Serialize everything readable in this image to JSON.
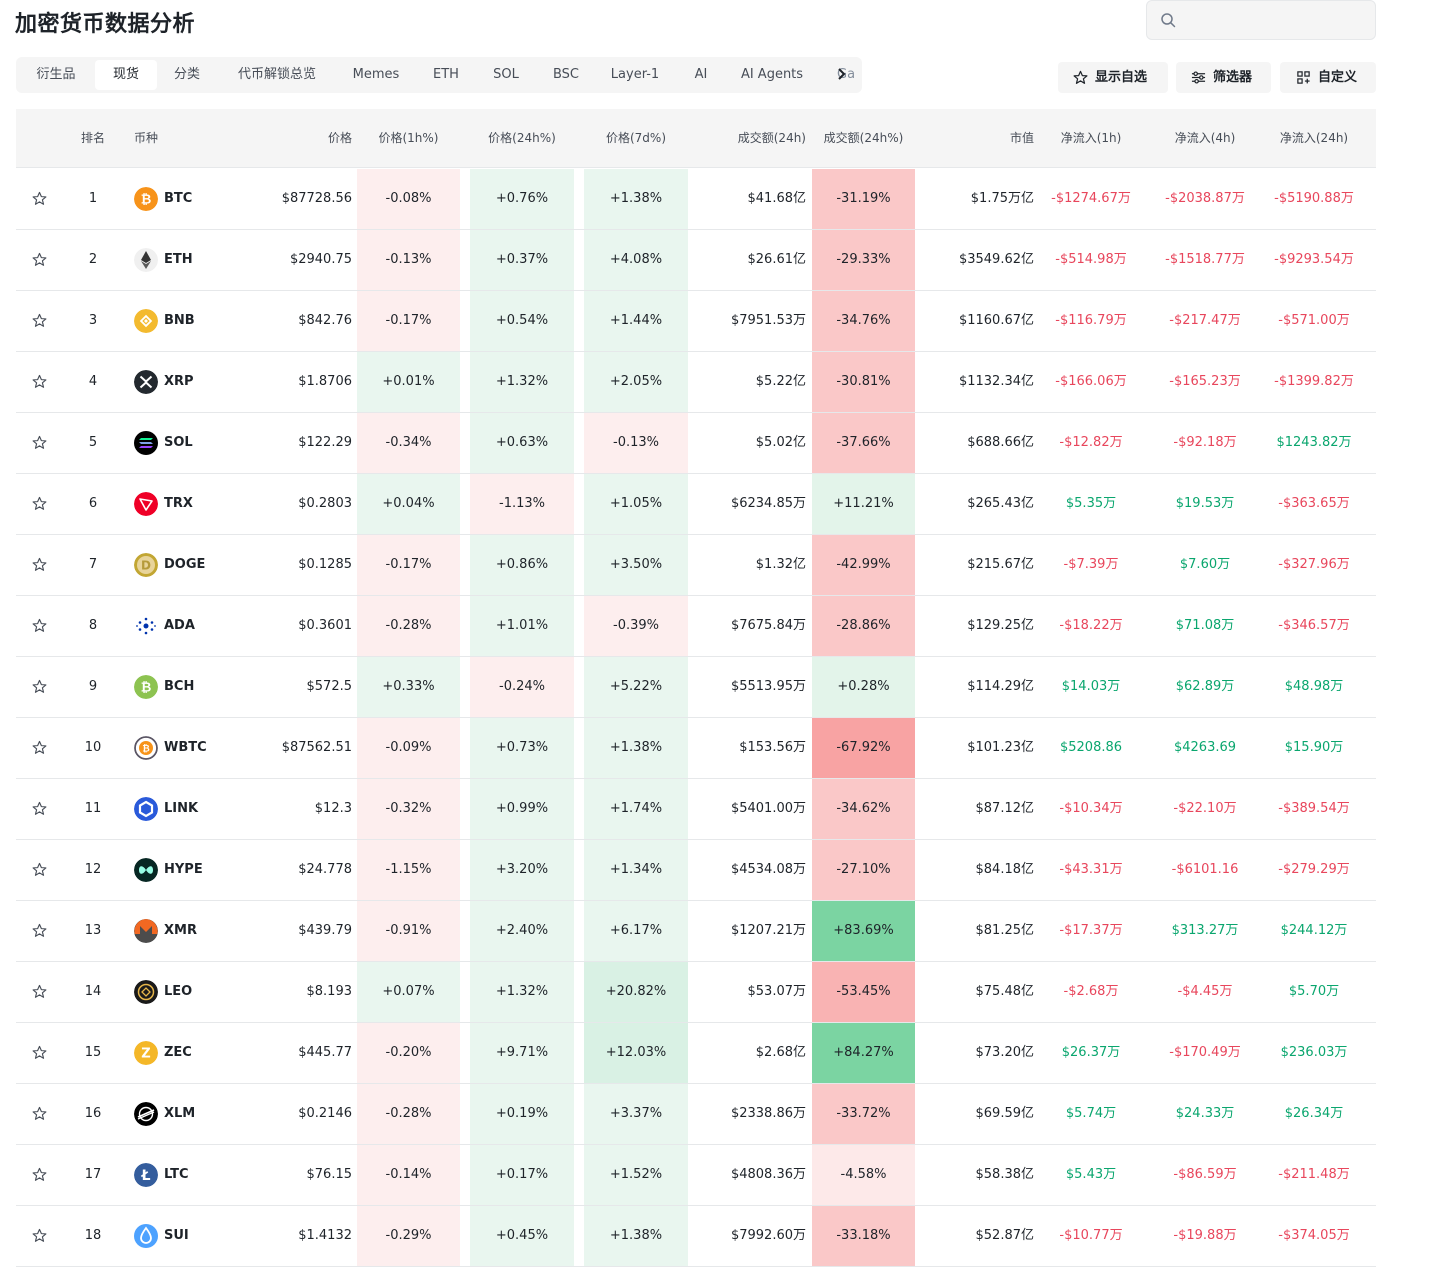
{
  "page": {
    "title": "加密货币数据分析"
  },
  "search": {
    "placeholder": ""
  },
  "tabs": [
    {
      "label": "衍生品",
      "active": false
    },
    {
      "label": "现货",
      "active": true
    },
    {
      "label": "分类",
      "active": false
    },
    {
      "label": "代币解锁总览",
      "active": false
    },
    {
      "label": "Memes",
      "active": false
    },
    {
      "label": "ETH",
      "active": false
    },
    {
      "label": "SOL",
      "active": false
    },
    {
      "label": "BSC",
      "active": false
    },
    {
      "label": "Layer-1",
      "active": false
    },
    {
      "label": "AI",
      "active": false
    },
    {
      "label": "AI Agents",
      "active": false
    },
    {
      "label": "Ga",
      "active": false
    }
  ],
  "actions": {
    "watchlist": "显示自选",
    "filter": "筛选器",
    "customize": "自定义"
  },
  "columns": {
    "rank": "排名",
    "coin": "币种",
    "price": "价格",
    "chg1h": "价格(1h%)",
    "chg24h": "价格(24h%)",
    "chg7d": "价格(7d%)",
    "vol24h": "成交额(24h)",
    "volchg": "成交额(24h%)",
    "mcap": "市值",
    "in1h": "净流入(1h)",
    "in4h": "净流入(4h)",
    "in24h": "净流入(24h)"
  },
  "colors": {
    "positive": "#0aa66e",
    "negative": "#e8465c"
  },
  "rows": [
    {
      "rank": "1",
      "symbol": "BTC",
      "icon": "btc-icon",
      "iconColor": "#f7931a",
      "price": "$87728.56",
      "c1h": "-0.08%",
      "c24h": "+0.76%",
      "c7d": "+1.38%",
      "vol": "$41.68亿",
      "volchg": "-31.19%",
      "mcap": "$1.75万亿",
      "in1h": "-$1274.67万",
      "in4h": "-$2038.87万",
      "in24h": "-$5190.88万"
    },
    {
      "rank": "2",
      "symbol": "ETH",
      "icon": "eth-icon",
      "iconColor": "#ffffff",
      "price": "$2940.75",
      "c1h": "-0.13%",
      "c24h": "+0.37%",
      "c7d": "+4.08%",
      "vol": "$26.61亿",
      "volchg": "-29.33%",
      "mcap": "$3549.62亿",
      "in1h": "-$514.98万",
      "in4h": "-$1518.77万",
      "in24h": "-$9293.54万"
    },
    {
      "rank": "3",
      "symbol": "BNB",
      "icon": "bnb-icon",
      "iconColor": "#f3ba2f",
      "price": "$842.76",
      "c1h": "-0.17%",
      "c24h": "+0.54%",
      "c7d": "+1.44%",
      "vol": "$7951.53万",
      "volchg": "-34.76%",
      "mcap": "$1160.67亿",
      "in1h": "-$116.79万",
      "in4h": "-$217.47万",
      "in24h": "-$571.00万"
    },
    {
      "rank": "4",
      "symbol": "XRP",
      "icon": "xrp-icon",
      "iconColor": "#23292f",
      "price": "$1.8706",
      "c1h": "+0.01%",
      "c24h": "+1.32%",
      "c7d": "+2.05%",
      "vol": "$5.22亿",
      "volchg": "-30.81%",
      "mcap": "$1132.34亿",
      "in1h": "-$166.06万",
      "in4h": "-$165.23万",
      "in24h": "-$1399.82万"
    },
    {
      "rank": "5",
      "symbol": "SOL",
      "icon": "sol-icon",
      "iconColor": "#000000",
      "price": "$122.29",
      "c1h": "-0.34%",
      "c24h": "+0.63%",
      "c7d": "-0.13%",
      "vol": "$5.02亿",
      "volchg": "-37.66%",
      "mcap": "$688.66亿",
      "in1h": "-$12.82万",
      "in4h": "-$92.18万",
      "in24h": "$1243.82万"
    },
    {
      "rank": "6",
      "symbol": "TRX",
      "icon": "trx-icon",
      "iconColor": "#ef0027",
      "price": "$0.2803",
      "c1h": "+0.04%",
      "c24h": "-1.13%",
      "c7d": "+1.05%",
      "vol": "$6234.85万",
      "volchg": "+11.21%",
      "mcap": "$265.43亿",
      "in1h": "$5.35万",
      "in4h": "$19.53万",
      "in24h": "-$363.65万"
    },
    {
      "rank": "7",
      "symbol": "DOGE",
      "icon": "doge-icon",
      "iconColor": "#c2a633",
      "price": "$0.1285",
      "c1h": "-0.17%",
      "c24h": "+0.86%",
      "c7d": "+3.50%",
      "vol": "$1.32亿",
      "volchg": "-42.99%",
      "mcap": "$215.67亿",
      "in1h": "-$7.39万",
      "in4h": "$7.60万",
      "in24h": "-$327.96万"
    },
    {
      "rank": "8",
      "symbol": "ADA",
      "icon": "ada-icon",
      "iconColor": "#0033ad",
      "price": "$0.3601",
      "c1h": "-0.28%",
      "c24h": "+1.01%",
      "c7d": "-0.39%",
      "vol": "$7675.84万",
      "volchg": "-28.86%",
      "mcap": "$129.25亿",
      "in1h": "-$18.22万",
      "in4h": "$71.08万",
      "in24h": "-$346.57万"
    },
    {
      "rank": "9",
      "symbol": "BCH",
      "icon": "bch-icon",
      "iconColor": "#8dc351",
      "price": "$572.5",
      "c1h": "+0.33%",
      "c24h": "-0.24%",
      "c7d": "+5.22%",
      "vol": "$5513.95万",
      "volchg": "+0.28%",
      "mcap": "$114.29亿",
      "in1h": "$14.03万",
      "in4h": "$62.89万",
      "in24h": "$48.98万"
    },
    {
      "rank": "10",
      "symbol": "WBTC",
      "icon": "wbtc-icon",
      "iconColor": "#5a5564",
      "price": "$87562.51",
      "c1h": "-0.09%",
      "c24h": "+0.73%",
      "c7d": "+1.38%",
      "vol": "$153.56万",
      "volchg": "-67.92%",
      "mcap": "$101.23亿",
      "in1h": "$5208.86",
      "in4h": "$4263.69",
      "in24h": "$15.90万"
    },
    {
      "rank": "11",
      "symbol": "LINK",
      "icon": "link-icon",
      "iconColor": "#2a5ada",
      "price": "$12.3",
      "c1h": "-0.32%",
      "c24h": "+0.99%",
      "c7d": "+1.74%",
      "vol": "$5401.00万",
      "volchg": "-34.62%",
      "mcap": "$87.12亿",
      "in1h": "-$10.34万",
      "in4h": "-$22.10万",
      "in24h": "-$389.54万"
    },
    {
      "rank": "12",
      "symbol": "HYPE",
      "icon": "hype-icon",
      "iconColor": "#072723",
      "price": "$24.778",
      "c1h": "-1.15%",
      "c24h": "+3.20%",
      "c7d": "+1.34%",
      "vol": "$4534.08万",
      "volchg": "-27.10%",
      "mcap": "$84.18亿",
      "in1h": "-$43.31万",
      "in4h": "-$6101.16",
      "in24h": "-$279.29万"
    },
    {
      "rank": "13",
      "symbol": "XMR",
      "icon": "xmr-icon",
      "iconColor": "#f26822",
      "price": "$439.79",
      "c1h": "-0.91%",
      "c24h": "+2.40%",
      "c7d": "+6.17%",
      "vol": "$1207.21万",
      "volchg": "+83.69%",
      "mcap": "$81.25亿",
      "in1h": "-$17.37万",
      "in4h": "$313.27万",
      "in24h": "$244.12万"
    },
    {
      "rank": "14",
      "symbol": "LEO",
      "icon": "leo-icon",
      "iconColor": "#1a1a1a",
      "price": "$8.193",
      "c1h": "+0.07%",
      "c24h": "+1.32%",
      "c7d": "+20.82%",
      "vol": "$53.07万",
      "volchg": "-53.45%",
      "mcap": "$75.48亿",
      "in1h": "-$2.68万",
      "in4h": "-$4.45万",
      "in24h": "$5.70万"
    },
    {
      "rank": "15",
      "symbol": "ZEC",
      "icon": "zec-icon",
      "iconColor": "#f4b728",
      "price": "$445.77",
      "c1h": "-0.20%",
      "c24h": "+9.71%",
      "c7d": "+12.03%",
      "vol": "$2.68亿",
      "volchg": "+84.27%",
      "mcap": "$73.20亿",
      "in1h": "$26.37万",
      "in4h": "-$170.49万",
      "in24h": "$236.03万"
    },
    {
      "rank": "16",
      "symbol": "XLM",
      "icon": "xlm-icon",
      "iconColor": "#14b6e7",
      "price": "$0.2146",
      "c1h": "-0.28%",
      "c24h": "+0.19%",
      "c7d": "+3.37%",
      "vol": "$2338.86万",
      "volchg": "-33.72%",
      "mcap": "$69.59亿",
      "in1h": "$5.74万",
      "in4h": "$24.33万",
      "in24h": "$26.34万"
    },
    {
      "rank": "17",
      "symbol": "LTC",
      "icon": "ltc-icon",
      "iconColor": "#345d9d",
      "price": "$76.15",
      "c1h": "-0.14%",
      "c24h": "+0.17%",
      "c7d": "+1.52%",
      "vol": "$4808.36万",
      "volchg": "-4.58%",
      "mcap": "$58.38亿",
      "in1h": "$5.43万",
      "in4h": "-$86.59万",
      "in24h": "-$211.48万"
    },
    {
      "rank": "18",
      "symbol": "SUI",
      "icon": "sui-icon",
      "iconColor": "#4da2ff",
      "price": "$1.4132",
      "c1h": "-0.29%",
      "c24h": "+0.45%",
      "c7d": "+1.38%",
      "vol": "$7992.60万",
      "volchg": "-33.18%",
      "mcap": "$52.87亿",
      "in1h": "-$10.77万",
      "in4h": "-$19.88万",
      "in24h": "-$374.05万"
    }
  ]
}
